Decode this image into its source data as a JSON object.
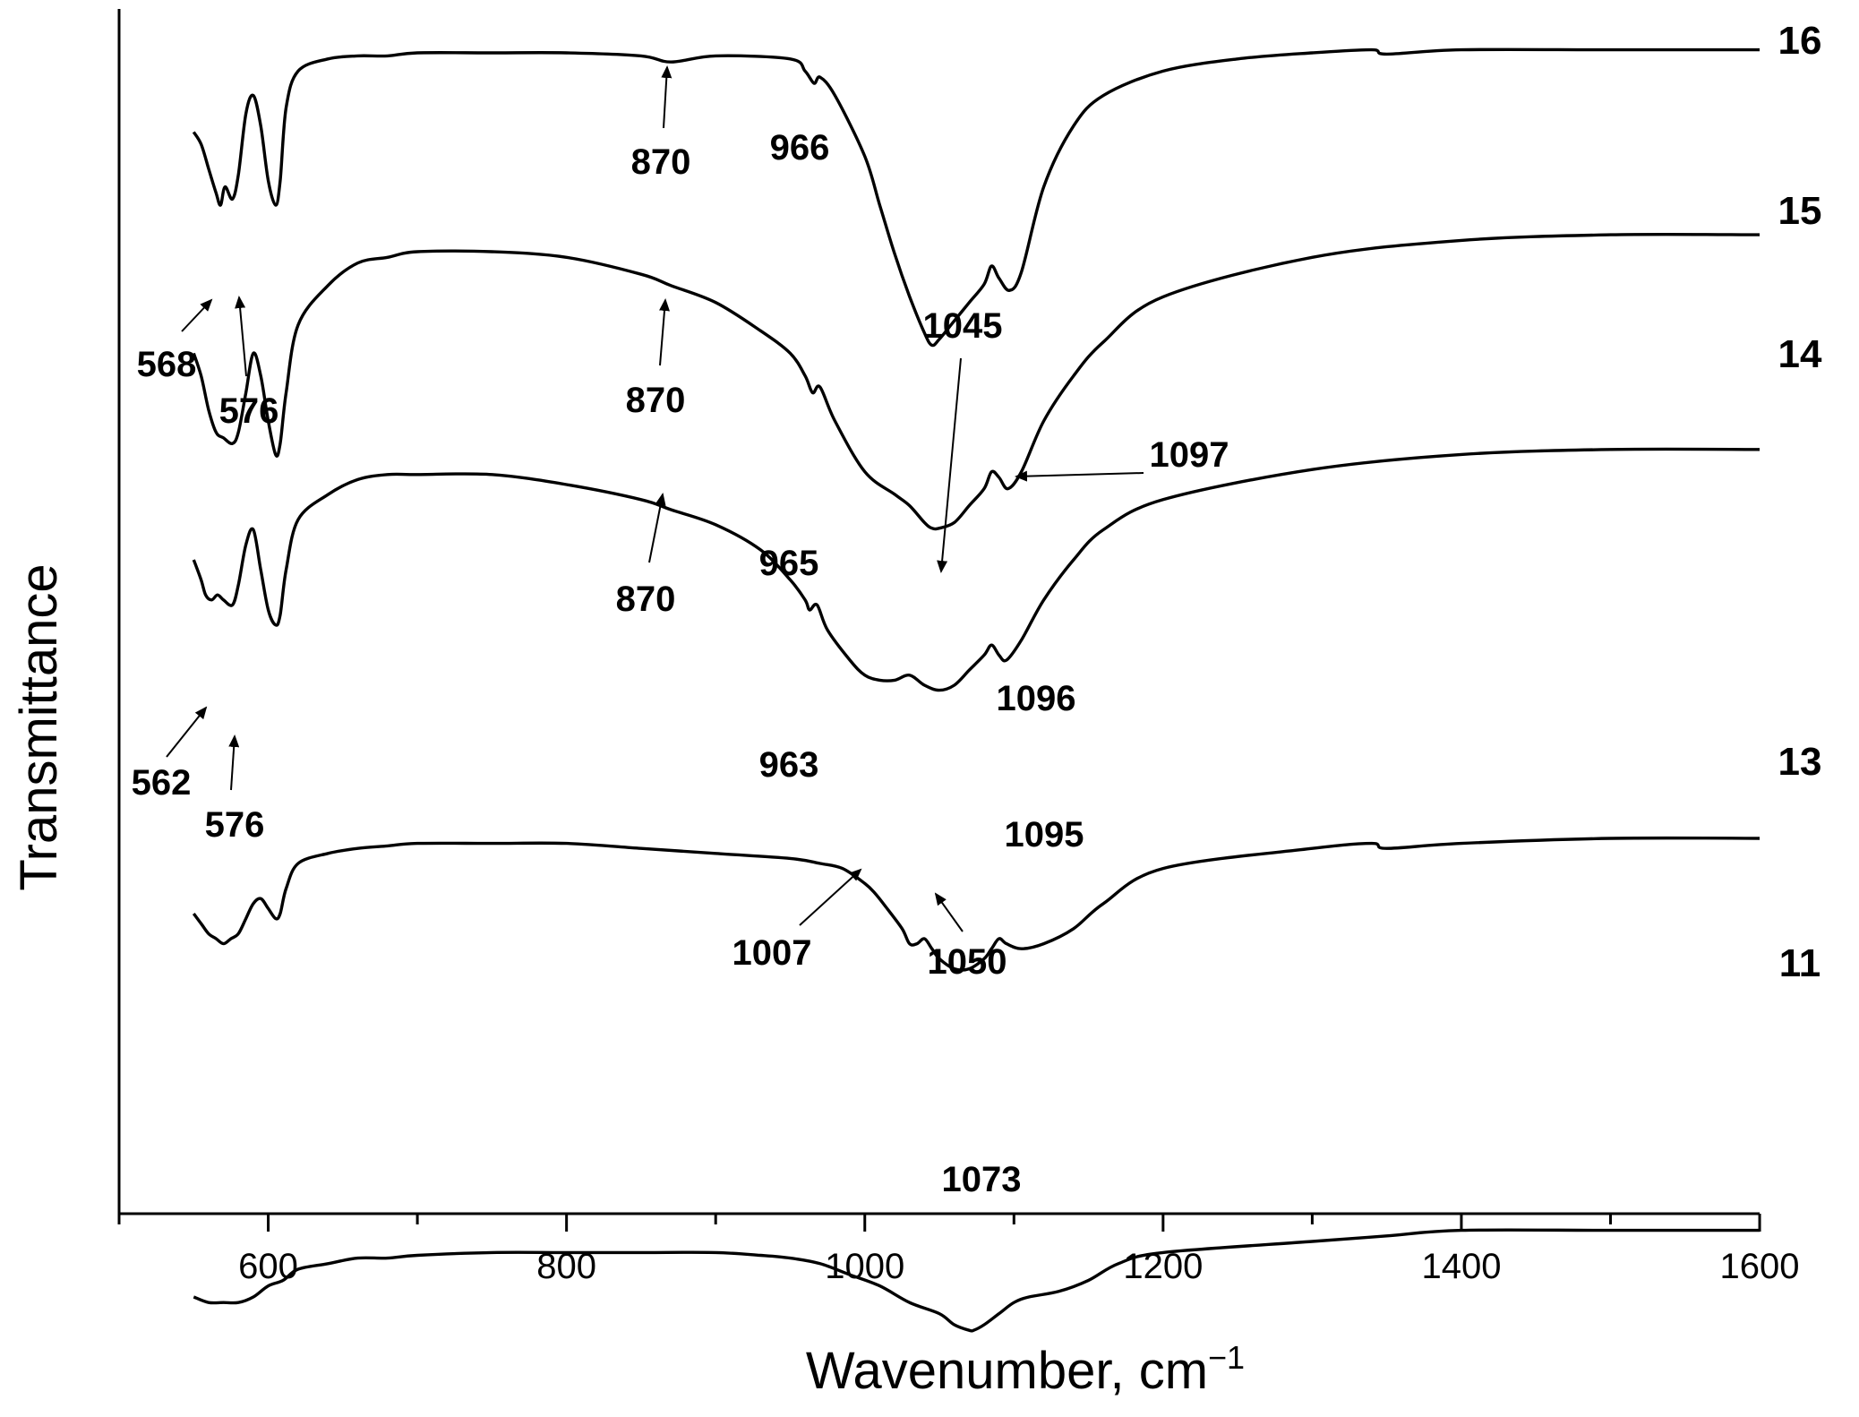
{
  "chart_data": {
    "type": "line",
    "xlabel": "Wavenumber, cm",
    "xlabel_sup": "−1",
    "ylabel": "Transmittance",
    "xlim": [
      500,
      1600
    ],
    "xticks": [
      600,
      800,
      1000,
      1200,
      1400,
      1600
    ],
    "y_tick_labels": false,
    "grid": false,
    "legend": "none (series labeled at right end)",
    "series": [
      {
        "name": "16",
        "x": [
          550,
          555,
          560,
          565,
          568,
          571,
          576,
          580,
          585,
          590,
          595,
          600,
          605,
          608,
          612,
          620,
          640,
          660,
          680,
          700,
          750,
          800,
          850,
          870,
          900,
          950,
          960,
          966,
          970,
          980,
          1000,
          1010,
          1020,
          1030,
          1040,
          1045,
          1050,
          1060,
          1070,
          1080,
          1085,
          1090,
          1097,
          1105,
          1120,
          1140,
          1160,
          1200,
          1250,
          1300,
          1340,
          1350,
          1400,
          1500,
          1600
        ],
        "y": [
          0.82,
          0.8,
          0.76,
          0.72,
          0.7,
          0.73,
          0.71,
          0.75,
          0.85,
          0.88,
          0.83,
          0.74,
          0.7,
          0.74,
          0.86,
          0.92,
          0.94,
          0.945,
          0.945,
          0.95,
          0.95,
          0.95,
          0.945,
          0.935,
          0.945,
          0.94,
          0.92,
          0.9,
          0.91,
          0.88,
          0.78,
          0.7,
          0.62,
          0.55,
          0.49,
          0.47,
          0.48,
          0.51,
          0.54,
          0.57,
          0.6,
          0.58,
          0.56,
          0.59,
          0.73,
          0.83,
          0.88,
          0.92,
          0.94,
          0.95,
          0.955,
          0.948,
          0.955,
          0.955,
          0.955
        ]
      },
      {
        "name": "15",
        "x": [
          550,
          555,
          560,
          565,
          570,
          576,
          580,
          585,
          590,
          595,
          600,
          605,
          608,
          612,
          620,
          640,
          660,
          680,
          700,
          750,
          800,
          850,
          870,
          900,
          930,
          950,
          960,
          965,
          970,
          980,
          1000,
          1020,
          1030,
          1040,
          1045,
          1050,
          1060,
          1070,
          1080,
          1085,
          1090,
          1096,
          1105,
          1120,
          1140,
          1160,
          1200,
          1300,
          1400,
          1500,
          1600
        ],
        "y": [
          0.62,
          0.58,
          0.52,
          0.48,
          0.47,
          0.46,
          0.48,
          0.55,
          0.62,
          0.58,
          0.5,
          0.44,
          0.46,
          0.55,
          0.67,
          0.74,
          0.78,
          0.79,
          0.8,
          0.8,
          0.79,
          0.76,
          0.74,
          0.71,
          0.66,
          0.62,
          0.58,
          0.55,
          0.56,
          0.5,
          0.41,
          0.37,
          0.35,
          0.32,
          0.31,
          0.31,
          0.32,
          0.35,
          0.38,
          0.41,
          0.4,
          0.38,
          0.41,
          0.5,
          0.58,
          0.64,
          0.72,
          0.79,
          0.82,
          0.83,
          0.83
        ]
      },
      {
        "name": "14",
        "x": [
          550,
          555,
          558,
          562,
          566,
          570,
          576,
          580,
          585,
          590,
          595,
          600,
          605,
          608,
          612,
          620,
          640,
          660,
          680,
          700,
          750,
          800,
          850,
          870,
          900,
          930,
          950,
          960,
          963,
          968,
          975,
          990,
          1000,
          1010,
          1020,
          1030,
          1040,
          1050,
          1060,
          1070,
          1080,
          1085,
          1090,
          1095,
          1105,
          1120,
          1140,
          1160,
          1200,
          1300,
          1400,
          1500,
          1600
        ],
        "y": [
          0.5,
          0.46,
          0.43,
          0.42,
          0.43,
          0.42,
          0.41,
          0.45,
          0.53,
          0.56,
          0.48,
          0.4,
          0.37,
          0.39,
          0.48,
          0.58,
          0.63,
          0.66,
          0.67,
          0.67,
          0.67,
          0.65,
          0.62,
          0.6,
          0.57,
          0.52,
          0.46,
          0.42,
          0.4,
          0.41,
          0.36,
          0.3,
          0.27,
          0.26,
          0.26,
          0.27,
          0.25,
          0.24,
          0.25,
          0.28,
          0.31,
          0.33,
          0.31,
          0.3,
          0.34,
          0.42,
          0.5,
          0.56,
          0.62,
          0.68,
          0.71,
          0.72,
          0.72
        ]
      },
      {
        "name": "13",
        "x": [
          550,
          555,
          560,
          565,
          570,
          575,
          580,
          585,
          590,
          595,
          600,
          605,
          608,
          612,
          620,
          640,
          660,
          680,
          700,
          750,
          800,
          850,
          900,
          950,
          970,
          985,
          1000,
          1007,
          1015,
          1025,
          1030,
          1035,
          1040,
          1045,
          1050,
          1060,
          1070,
          1080,
          1085,
          1090,
          1095,
          1105,
          1120,
          1140,
          1160,
          1200,
          1300,
          1340,
          1350,
          1400,
          1500,
          1600
        ],
        "y": [
          0.25,
          0.23,
          0.21,
          0.2,
          0.19,
          0.2,
          0.21,
          0.24,
          0.27,
          0.28,
          0.26,
          0.24,
          0.25,
          0.3,
          0.35,
          0.37,
          0.38,
          0.385,
          0.39,
          0.39,
          0.39,
          0.38,
          0.37,
          0.36,
          0.35,
          0.34,
          0.31,
          0.29,
          0.26,
          0.22,
          0.19,
          0.19,
          0.2,
          0.18,
          0.16,
          0.14,
          0.14,
          0.16,
          0.18,
          0.2,
          0.19,
          0.18,
          0.19,
          0.22,
          0.27,
          0.34,
          0.38,
          0.39,
          0.38,
          0.39,
          0.4,
          0.4
        ]
      },
      {
        "name": "11",
        "x": [
          550,
          560,
          570,
          580,
          590,
          600,
          610,
          620,
          640,
          660,
          680,
          700,
          750,
          800,
          850,
          900,
          930,
          950,
          970,
          990,
          1010,
          1030,
          1050,
          1060,
          1070,
          1073,
          1080,
          1090,
          1100,
          1110,
          1130,
          1150,
          1170,
          1200,
          1300,
          1350,
          1400,
          1500,
          1600
        ],
        "y": [
          0.1,
          0.09,
          0.09,
          0.09,
          0.1,
          0.12,
          0.13,
          0.15,
          0.16,
          0.17,
          0.17,
          0.175,
          0.18,
          0.18,
          0.18,
          0.18,
          0.175,
          0.17,
          0.16,
          0.14,
          0.12,
          0.09,
          0.07,
          0.05,
          0.04,
          0.04,
          0.05,
          0.07,
          0.09,
          0.1,
          0.11,
          0.13,
          0.16,
          0.18,
          0.2,
          0.21,
          0.22,
          0.22,
          0.22
        ]
      }
    ],
    "annotations": [
      {
        "text": "16",
        "role": "series-label"
      },
      {
        "text": "15",
        "role": "series-label"
      },
      {
        "text": "14",
        "role": "series-label"
      },
      {
        "text": "13",
        "role": "series-label"
      },
      {
        "text": "11",
        "role": "series-label"
      },
      {
        "text": "568"
      },
      {
        "text": "576"
      },
      {
        "text": "870"
      },
      {
        "text": "966"
      },
      {
        "text": "1045"
      },
      {
        "text": "1097"
      },
      {
        "text": "870"
      },
      {
        "text": "965"
      },
      {
        "text": "1096"
      },
      {
        "text": "562"
      },
      {
        "text": "576"
      },
      {
        "text": "870"
      },
      {
        "text": "963"
      },
      {
        "text": "1095"
      },
      {
        "text": "1007"
      },
      {
        "text": "1050"
      },
      {
        "text": "1073"
      }
    ]
  }
}
